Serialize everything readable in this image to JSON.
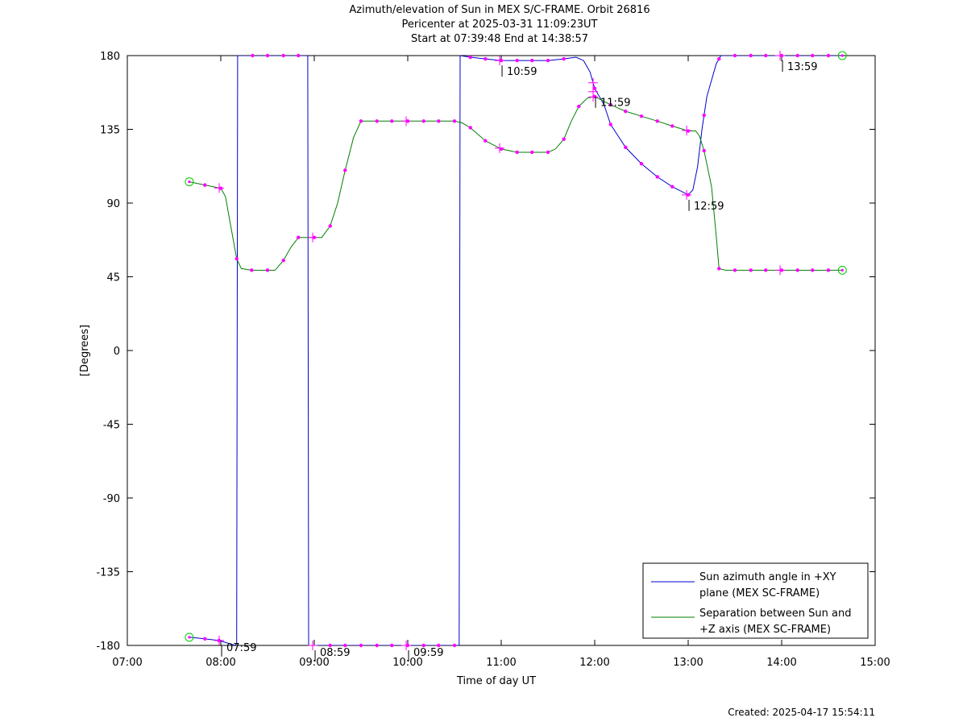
{
  "chart_data": {
    "type": "line",
    "title": [
      "Azimuth/elevation of Sun in MEX S/C-FRAME.  Orbit 26816",
      "Pericenter at 2025-03-31 11:09:23UT",
      "Start at 07:39:48 End at 14:38:57"
    ],
    "xlabel": "Time of day UT",
    "ylabel": "[Degrees]",
    "xlim": [
      7.0,
      15.0
    ],
    "ylim": [
      -180,
      180
    ],
    "x_ticks": [
      7,
      8,
      9,
      10,
      11,
      12,
      13,
      14,
      15
    ],
    "x_tick_labels": [
      "07:00",
      "08:00",
      "09:00",
      "10:00",
      "11:00",
      "12:00",
      "13:00",
      "14:00",
      "15:00"
    ],
    "y_ticks": [
      180,
      135,
      90,
      45,
      0,
      -45,
      -90,
      -135,
      -180
    ],
    "y_tick_labels": [
      "180",
      "135",
      "90",
      "45",
      "0",
      "-45",
      "-90",
      "-135",
      "-180"
    ],
    "grid": false,
    "legend_position": "bottom-right",
    "series": [
      {
        "name": "Sun azimuth angle in +XY plane (MEX SC-FRAME)",
        "legend_lines": [
          "Sun azimuth angle in +XY",
          "plane (MEX SC-FRAME)"
        ],
        "color": "#0000cc",
        "points": [
          [
            7.663,
            -175
          ],
          [
            7.83,
            -176
          ],
          [
            7.98,
            -177
          ],
          [
            8.1,
            -179
          ],
          [
            8.15,
            -180
          ],
          [
            8.17,
            -179
          ],
          [
            8.18,
            180
          ],
          [
            8.34,
            180
          ],
          [
            8.5,
            180
          ],
          [
            8.67,
            180
          ],
          [
            8.83,
            180
          ],
          [
            8.93,
            180
          ],
          [
            8.94,
            -180
          ],
          [
            9.0,
            -180
          ],
          [
            9.17,
            -180
          ],
          [
            9.33,
            -180
          ],
          [
            9.5,
            -180
          ],
          [
            9.67,
            -180
          ],
          [
            9.83,
            -180
          ],
          [
            10.0,
            -180
          ],
          [
            10.17,
            -180
          ],
          [
            10.33,
            -180
          ],
          [
            10.5,
            -180
          ],
          [
            10.55,
            -180
          ],
          [
            10.56,
            180
          ],
          [
            10.67,
            179
          ],
          [
            10.83,
            178
          ],
          [
            11.0,
            177
          ],
          [
            11.17,
            177
          ],
          [
            11.33,
            177
          ],
          [
            11.5,
            177
          ],
          [
            11.67,
            178
          ],
          [
            11.8,
            179
          ],
          [
            11.88,
            177
          ],
          [
            11.95,
            170
          ],
          [
            12.0,
            160
          ],
          [
            12.1,
            150
          ],
          [
            12.17,
            138
          ],
          [
            12.33,
            124
          ],
          [
            12.5,
            114
          ],
          [
            12.67,
            106
          ],
          [
            12.83,
            100
          ],
          [
            13.0,
            95
          ],
          [
            13.05,
            98
          ],
          [
            13.1,
            112
          ],
          [
            13.15,
            136
          ],
          [
            13.2,
            155
          ],
          [
            13.3,
            175
          ],
          [
            13.35,
            180
          ],
          [
            13.5,
            180
          ],
          [
            13.67,
            180
          ],
          [
            13.83,
            180
          ],
          [
            14.0,
            180
          ],
          [
            14.17,
            180
          ],
          [
            14.33,
            180
          ],
          [
            14.5,
            180
          ],
          [
            14.649,
            180
          ]
        ]
      },
      {
        "name": "Separation between Sun and +Z axis (MEX SC-FRAME)",
        "legend_lines": [
          "Separation between Sun and",
          "+Z axis (MEX SC-FRAME)"
        ],
        "color": "#008000",
        "points": [
          [
            7.663,
            103
          ],
          [
            7.83,
            101
          ],
          [
            8.0,
            99
          ],
          [
            8.05,
            94
          ],
          [
            8.1,
            78
          ],
          [
            8.17,
            56
          ],
          [
            8.22,
            50
          ],
          [
            8.33,
            49
          ],
          [
            8.5,
            49
          ],
          [
            8.58,
            49
          ],
          [
            8.67,
            55
          ],
          [
            8.75,
            63
          ],
          [
            8.83,
            69
          ],
          [
            9.0,
            69
          ],
          [
            9.08,
            69
          ],
          [
            9.17,
            76
          ],
          [
            9.25,
            90
          ],
          [
            9.33,
            110
          ],
          [
            9.42,
            130
          ],
          [
            9.5,
            140
          ],
          [
            9.67,
            140
          ],
          [
            9.83,
            140
          ],
          [
            10.0,
            140
          ],
          [
            10.17,
            140
          ],
          [
            10.33,
            140
          ],
          [
            10.5,
            140
          ],
          [
            10.58,
            139
          ],
          [
            10.67,
            136
          ],
          [
            10.83,
            128
          ],
          [
            11.0,
            123
          ],
          [
            11.17,
            121
          ],
          [
            11.33,
            121
          ],
          [
            11.5,
            121
          ],
          [
            11.58,
            123
          ],
          [
            11.67,
            129
          ],
          [
            11.75,
            140
          ],
          [
            11.83,
            149
          ],
          [
            11.92,
            154
          ],
          [
            12.0,
            155
          ],
          [
            12.17,
            150
          ],
          [
            12.33,
            146
          ],
          [
            12.5,
            143
          ],
          [
            12.67,
            140
          ],
          [
            12.83,
            137
          ],
          [
            13.0,
            134
          ],
          [
            13.08,
            134
          ],
          [
            13.12,
            131
          ],
          [
            13.17,
            122
          ],
          [
            13.25,
            100
          ],
          [
            13.3,
            70
          ],
          [
            13.33,
            50
          ],
          [
            13.4,
            49
          ],
          [
            13.5,
            49
          ],
          [
            13.67,
            49
          ],
          [
            13.83,
            49
          ],
          [
            14.0,
            49
          ],
          [
            14.17,
            49
          ],
          [
            14.33,
            49
          ],
          [
            14.5,
            49
          ],
          [
            14.649,
            49
          ]
        ]
      }
    ],
    "marker_x_azimuth": [
      7.83,
      7.98,
      8.34,
      8.5,
      8.67,
      8.83,
      9.17,
      9.33,
      9.5,
      9.67,
      9.83,
      10.0,
      10.17,
      10.33,
      10.5,
      10.67,
      10.83,
      11.0,
      11.17,
      11.33,
      11.5,
      11.67,
      12.0,
      12.17,
      12.33,
      12.5,
      12.67,
      12.83,
      13.0,
      13.17,
      13.33,
      13.5,
      13.67,
      13.83,
      14.0,
      14.17,
      14.33,
      14.5
    ],
    "marker_x_separation": [
      7.83,
      8.0,
      8.17,
      8.33,
      8.5,
      8.67,
      8.83,
      9.0,
      9.17,
      9.33,
      9.5,
      9.67,
      9.83,
      10.0,
      10.17,
      10.33,
      10.5,
      10.67,
      10.83,
      11.0,
      11.17,
      11.33,
      11.5,
      11.67,
      11.83,
      12.0,
      12.17,
      12.33,
      12.5,
      12.67,
      12.83,
      13.0,
      13.17,
      13.33,
      13.5,
      13.67,
      13.83,
      14.0,
      14.17,
      14.33,
      14.5
    ],
    "endpoint_x": [
      7.663,
      14.649
    ],
    "hour_marks": [
      {
        "label": "07:59",
        "x": 7.983,
        "y": -177
      },
      {
        "label": "08:59",
        "x": 8.983,
        "y": -180
      },
      {
        "label": "09:59",
        "x": 9.983,
        "y": -180
      },
      {
        "label": "10:59",
        "x": 10.983,
        "y": 177
      },
      {
        "label": "11:59",
        "x": 11.983,
        "y": 158
      },
      {
        "label": "12:59",
        "x": 12.983,
        "y": 95
      },
      {
        "label": "13:59",
        "x": 13.983,
        "y": 180
      }
    ],
    "marker_color": "#ff00ff",
    "endpoint_color": "#00cc00"
  },
  "footer": {
    "created": "Created: 2025-04-17 15:54:11"
  }
}
